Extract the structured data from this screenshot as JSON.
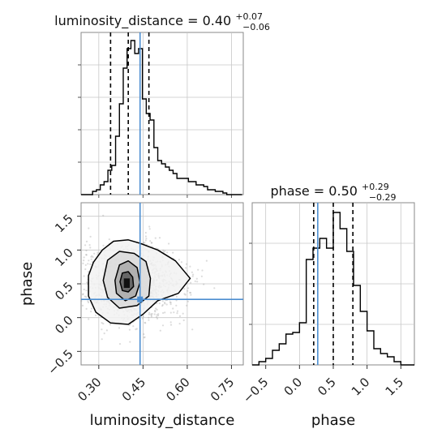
{
  "chart_data": [
    {
      "type": "histogram",
      "panel": "luminosity_distance 1D marginal",
      "title": {
        "param": "luminosity_distance",
        "median": "0.40",
        "plus": "+0.07",
        "minus": "−0.06"
      },
      "bin_edges": [
        0.24,
        0.253,
        0.266,
        0.279,
        0.292,
        0.305,
        0.318,
        0.331,
        0.344,
        0.357,
        0.37,
        0.383,
        0.396,
        0.409,
        0.422,
        0.435,
        0.448,
        0.461,
        0.474,
        0.487,
        0.5,
        0.513,
        0.526,
        0.539,
        0.552,
        0.565,
        0.578,
        0.591,
        0.604,
        0.617,
        0.63,
        0.643,
        0.656,
        0.669,
        0.682,
        0.695,
        0.708,
        0.721,
        0.734,
        0.747,
        0.76,
        0.773,
        0.786
      ],
      "counts": [
        0,
        0,
        0,
        0.02,
        0.03,
        0.06,
        0.08,
        0.15,
        0.18,
        0.36,
        0.56,
        0.78,
        0.9,
        0.95,
        0.87,
        0.9,
        0.59,
        0.5,
        0.46,
        0.29,
        0.21,
        0.19,
        0.17,
        0.15,
        0.13,
        0.1,
        0.1,
        0.1,
        0.08,
        0.08,
        0.06,
        0.06,
        0.05,
        0.03,
        0.03,
        0.02,
        0.02,
        0.01,
        0.0,
        0.0,
        0.0,
        0.0
      ],
      "quantiles": [
        0.34,
        0.4,
        0.47
      ],
      "truth": 0.44,
      "xlim": [
        0.24,
        0.79
      ]
    },
    {
      "type": "histogram",
      "panel": "phase 1D marginal",
      "title": {
        "param": "phase",
        "median": "0.50",
        "plus": "+0.29",
        "minus": "−0.29"
      },
      "bin_edges": [
        -0.7,
        -0.6,
        -0.5,
        -0.4,
        -0.3,
        -0.2,
        -0.1,
        0.0,
        0.1,
        0.2,
        0.3,
        0.4,
        0.5,
        0.6,
        0.7,
        0.8,
        0.9,
        1.0,
        1.1,
        1.2,
        1.3,
        1.4,
        1.5,
        1.6,
        1.7
      ],
      "counts": [
        0,
        0.02,
        0.04,
        0.09,
        0.13,
        0.19,
        0.2,
        0.26,
        0.65,
        0.72,
        0.78,
        0.72,
        0.94,
        0.84,
        0.7,
        0.49,
        0.33,
        0.21,
        0.1,
        0.07,
        0.05,
        0.02,
        0,
        0
      ],
      "quantiles": [
        0.21,
        0.5,
        0.79
      ],
      "truth": 0.27,
      "xlim": [
        -0.7,
        1.7
      ],
      "xticks": [
        -0.5,
        0.0,
        0.5,
        1.0,
        1.5
      ],
      "xtick_labels": [
        "−0.5",
        "0.0",
        "0.5",
        "1.0",
        "1.5"
      ],
      "xlabel": "phase"
    },
    {
      "type": "scatter",
      "panel": "2D density phase vs luminosity_distance",
      "x_param": "luminosity_distance",
      "y_param": "phase",
      "center": [
        0.4,
        0.5
      ],
      "truth": [
        0.44,
        0.27
      ],
      "xlim": [
        0.24,
        0.79
      ],
      "ylim": [
        -0.7,
        1.7
      ],
      "xticks": [
        0.3,
        0.45,
        0.6,
        0.75
      ],
      "xtick_labels": [
        "0.30",
        "0.45",
        "0.60",
        "0.75"
      ],
      "yticks": [
        -0.5,
        0.0,
        0.5,
        1.0,
        1.5
      ],
      "ytick_labels": [
        "−0.5",
        "0.0",
        "0.5",
        "1.0",
        "1.5"
      ],
      "xlabel": "luminosity_distance",
      "ylabel": "phase",
      "contours": [
        [
          [
            0.265,
            0.62
          ],
          [
            0.282,
            0.82
          ],
          [
            0.312,
            1.0
          ],
          [
            0.35,
            1.13
          ],
          [
            0.4,
            1.15
          ],
          [
            0.44,
            1.1
          ],
          [
            0.5,
            1.0
          ],
          [
            0.56,
            0.84
          ],
          [
            0.61,
            0.58
          ],
          [
            0.57,
            0.36
          ],
          [
            0.5,
            0.25
          ],
          [
            0.45,
            0.05
          ],
          [
            0.4,
            -0.1
          ],
          [
            0.34,
            -0.08
          ],
          [
            0.29,
            0.08
          ],
          [
            0.265,
            0.32
          ]
        ],
        [
          [
            0.315,
            0.55
          ],
          [
            0.33,
            0.85
          ],
          [
            0.37,
            0.98
          ],
          [
            0.42,
            0.95
          ],
          [
            0.46,
            0.83
          ],
          [
            0.475,
            0.58
          ],
          [
            0.47,
            0.32
          ],
          [
            0.43,
            0.18
          ],
          [
            0.37,
            0.14
          ],
          [
            0.33,
            0.3
          ]
        ],
        [
          [
            0.355,
            0.55
          ],
          [
            0.37,
            0.78
          ],
          [
            0.4,
            0.84
          ],
          [
            0.43,
            0.74
          ],
          [
            0.44,
            0.52
          ],
          [
            0.425,
            0.32
          ],
          [
            0.39,
            0.25
          ],
          [
            0.36,
            0.36
          ]
        ],
        [
          [
            0.372,
            0.53
          ],
          [
            0.38,
            0.66
          ],
          [
            0.4,
            0.68
          ],
          [
            0.415,
            0.6
          ],
          [
            0.418,
            0.46
          ],
          [
            0.4,
            0.38
          ],
          [
            0.38,
            0.4
          ]
        ]
      ]
    }
  ],
  "colors": {
    "hist_line": "#000000",
    "truth": "#4c8ed1",
    "grid": "#c8c8c8",
    "frame": "#888888",
    "scatter": "#9a9a9a"
  }
}
